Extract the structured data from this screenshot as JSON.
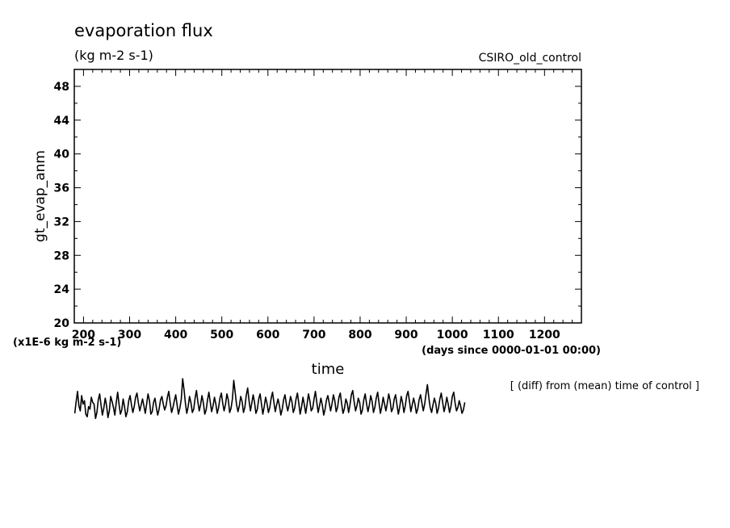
{
  "chart_data": {
    "type": "line",
    "title": "evaporation flux",
    "units": "(kg m-2 s-1)",
    "dataset": "CSIRO_old_control",
    "ylabel": "gt_evap_anm",
    "xlabel": "time",
    "x_units": "(days since 0000-01-01 00:00)",
    "y_scale_note": "(x1E-6 kg m-2 s-1)",
    "footnote": "[ (diff) from (mean) time of control ]",
    "xlim": [
      180,
      1280
    ],
    "ylim": [
      20,
      50
    ],
    "xticks": [
      200,
      300,
      400,
      500,
      600,
      700,
      800,
      900,
      1000,
      1100,
      1200
    ],
    "yticks": [
      20,
      24,
      28,
      32,
      36,
      40,
      44,
      48
    ],
    "xtick_labels": [
      "200",
      "300",
      "400",
      "500",
      "600",
      "700",
      "800",
      "900",
      "1000",
      "1100",
      "1200"
    ],
    "ytick_labels": [
      "20",
      "24",
      "28",
      "32",
      "36",
      "40",
      "44",
      "48"
    ],
    "grid": false,
    "series": [
      {
        "x_start": 181,
        "x_step": 3,
        "values": [
          9.3,
          10.7,
          11.9,
          10.2,
          9.6,
          11.4,
          10.4,
          10.8,
          9.2,
          8.9,
          10.1,
          9.8,
          11.2,
          10.6,
          10.4,
          8.7,
          9.4,
          10.9,
          11.6,
          10.3,
          9.1,
          9.9,
          11.1,
          10.2,
          8.8,
          9.6,
          11.3,
          10.7,
          10.0,
          9.1,
          10.6,
          11.8,
          10.4,
          9.2,
          9.7,
          11.0,
          10.1,
          8.9,
          9.5,
          10.8,
          11.4,
          10.3,
          9.4,
          10.1,
          11.2,
          11.7,
          10.5,
          9.6,
          10.3,
          11.0,
          10.2,
          9.3,
          10.4,
          11.6,
          10.8,
          9.2,
          9.5,
          10.6,
          11.1,
          10.0,
          9.1,
          9.8,
          10.9,
          11.3,
          10.4,
          9.7,
          10.2,
          11.2,
          11.9,
          10.6,
          9.4,
          10.0,
          10.8,
          11.5,
          10.3,
          9.2,
          9.9,
          11.0,
          13.4,
          12.1,
          10.5,
          9.3,
          10.1,
          11.3,
          10.6,
          9.4,
          9.8,
          11.1,
          12.0,
          10.7,
          9.6,
          10.3,
          11.4,
          10.5,
          9.2,
          9.7,
          10.9,
          11.8,
          10.6,
          9.5,
          10.2,
          11.2,
          10.4,
          9.3,
          10.0,
          11.1,
          11.7,
          10.5,
          9.6,
          10.4,
          11.6,
          10.9,
          9.4,
          9.9,
          11.0,
          13.2,
          11.8,
          10.3,
          9.5,
          10.2,
          11.3,
          10.7,
          9.4,
          10.0,
          11.4,
          12.3,
          10.8,
          9.6,
          10.5,
          11.5,
          10.6,
          9.3,
          9.8,
          11.0,
          11.6,
          10.4,
          9.2,
          10.1,
          11.2,
          10.5,
          9.4,
          10.0,
          11.1,
          11.8,
          10.6,
          9.5,
          10.3,
          11.0,
          10.2,
          9.1,
          9.8,
          10.9,
          11.5,
          10.4,
          9.6,
          10.3,
          11.3,
          10.7,
          9.4,
          9.9,
          11.0,
          11.7,
          10.5,
          9.2,
          10.1,
          11.2,
          10.3,
          9.3,
          10.4,
          11.6,
          10.8,
          9.6,
          9.9,
          11.0,
          11.9,
          10.6,
          9.4,
          10.2,
          11.1,
          10.3,
          9.1,
          9.8,
          10.9,
          11.4,
          10.5,
          9.6,
          10.4,
          11.5,
          10.8,
          9.5,
          10.0,
          11.2,
          11.7,
          10.4,
          9.3,
          9.9,
          11.0,
          10.5,
          9.4,
          10.3,
          11.5,
          12.0,
          10.7,
          9.6,
          10.2,
          11.1,
          10.6,
          9.2,
          9.7,
          10.9,
          11.6,
          10.4,
          9.5,
          10.3,
          11.4,
          10.7,
          9.4,
          10.0,
          11.1,
          11.8,
          10.5,
          9.3,
          10.1,
          11.2,
          10.4,
          9.6,
          10.5,
          11.6,
          10.8,
          9.5,
          9.9,
          11.0,
          11.5,
          10.3,
          9.2,
          10.1,
          11.3,
          10.6,
          9.4,
          10.2,
          11.4,
          11.9,
          10.7,
          9.5,
          10.3,
          11.1,
          10.4,
          9.3,
          9.8,
          10.9,
          11.5,
          10.5,
          9.6,
          10.4,
          11.6,
          12.7,
          11.2,
          10.0,
          9.4,
          10.3,
          11.1,
          10.5,
          9.3,
          9.9,
          11.0,
          11.7,
          10.6,
          9.5,
          10.2,
          11.2,
          10.4,
          9.4,
          10.1,
          11.3,
          11.8,
          10.5,
          9.6,
          10.0,
          10.8,
          10.2,
          9.3,
          9.7,
          10.6
        ]
      }
    ]
  }
}
